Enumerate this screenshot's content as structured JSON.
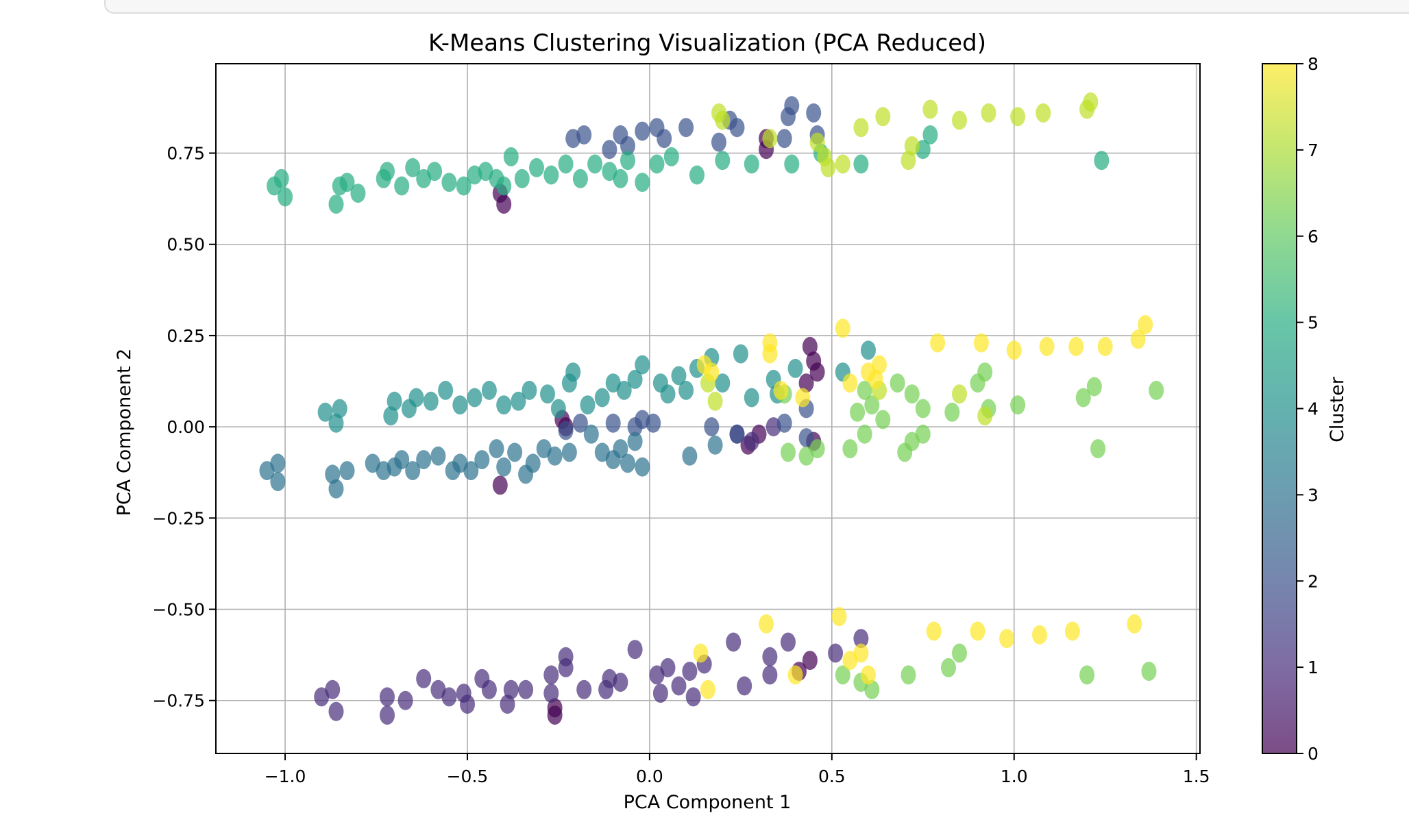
{
  "chart_data": {
    "type": "scatter",
    "title": "K-Means Clustering Visualization (PCA Reduced)",
    "xlabel": "PCA Component 1",
    "ylabel": "PCA Component 2",
    "xlim": [
      -1.19,
      1.51
    ],
    "ylim": [
      -0.895,
      0.995
    ],
    "xticks": [
      -1.0,
      -0.5,
      0.0,
      0.5,
      1.0,
      1.5
    ],
    "xtick_labels": [
      "−1.0",
      "−0.5",
      "0.0",
      "0.5",
      "1.0",
      "1.5"
    ],
    "yticks": [
      -0.75,
      -0.5,
      -0.25,
      0.0,
      0.25,
      0.5,
      0.75
    ],
    "ytick_labels": [
      "−0.75",
      "−0.50",
      "−0.25",
      "0.00",
      "0.25",
      "0.50",
      "0.75"
    ],
    "grid": true,
    "colorbar": {
      "label": "Cluster",
      "range": [
        0,
        8
      ],
      "ticks": [
        0,
        1,
        2,
        3,
        4,
        5,
        6,
        7,
        8
      ],
      "tick_labels": [
        "0",
        "1",
        "2",
        "3",
        "4",
        "5",
        "6",
        "7",
        "8"
      ],
      "colormap": "viridis",
      "alpha": 0.7
    },
    "series": [
      {
        "cluster": 0,
        "color": "#440154",
        "points": [
          [
            -0.4,
            0.61
          ],
          [
            -0.41,
            0.64
          ],
          [
            -0.24,
            0.02
          ],
          [
            -0.23,
            0.0
          ],
          [
            -0.41,
            -0.16
          ],
          [
            0.3,
            -0.02
          ],
          [
            0.27,
            -0.05
          ],
          [
            0.32,
            0.79
          ],
          [
            0.32,
            0.76
          ],
          [
            0.45,
            0.18
          ],
          [
            0.46,
            0.15
          ],
          [
            0.43,
            0.12
          ],
          [
            0.44,
            0.22
          ],
          [
            0.45,
            -0.04
          ],
          [
            -0.26,
            -0.79
          ],
          [
            -0.26,
            -0.77
          ],
          [
            0.41,
            -0.67
          ],
          [
            0.44,
            -0.64
          ]
        ]
      },
      {
        "cluster": 1,
        "color": "#472d7b",
        "points": [
          [
            -0.9,
            -0.74
          ],
          [
            -0.87,
            -0.72
          ],
          [
            -0.86,
            -0.78
          ],
          [
            -0.72,
            -0.74
          ],
          [
            -0.72,
            -0.79
          ],
          [
            -0.67,
            -0.75
          ],
          [
            -0.62,
            -0.69
          ],
          [
            -0.58,
            -0.72
          ],
          [
            -0.55,
            -0.74
          ],
          [
            -0.51,
            -0.73
          ],
          [
            -0.5,
            -0.76
          ],
          [
            -0.46,
            -0.69
          ],
          [
            -0.44,
            -0.72
          ],
          [
            -0.39,
            -0.76
          ],
          [
            -0.38,
            -0.72
          ],
          [
            -0.34,
            -0.72
          ],
          [
            -0.27,
            -0.73
          ],
          [
            -0.27,
            -0.68
          ],
          [
            -0.23,
            -0.66
          ],
          [
            -0.23,
            -0.63
          ],
          [
            -0.18,
            -0.72
          ],
          [
            -0.12,
            -0.72
          ],
          [
            -0.11,
            -0.69
          ],
          [
            -0.08,
            -0.7
          ],
          [
            -0.04,
            -0.61
          ],
          [
            0.02,
            -0.68
          ],
          [
            0.03,
            -0.73
          ],
          [
            0.05,
            -0.66
          ],
          [
            0.08,
            -0.71
          ],
          [
            0.11,
            -0.67
          ],
          [
            0.12,
            -0.74
          ],
          [
            0.15,
            -0.65
          ],
          [
            0.23,
            -0.59
          ],
          [
            0.26,
            -0.71
          ],
          [
            0.33,
            -0.63
          ],
          [
            0.33,
            -0.68
          ],
          [
            0.38,
            -0.59
          ],
          [
            0.51,
            -0.62
          ],
          [
            0.58,
            -0.58
          ],
          [
            0.24,
            -0.02
          ],
          [
            0.34,
            0.0
          ],
          [
            0.28,
            -0.04
          ]
        ]
      },
      {
        "cluster": 2,
        "color": "#3b528b",
        "points": [
          [
            -0.21,
            0.79
          ],
          [
            -0.18,
            0.8
          ],
          [
            -0.11,
            0.76
          ],
          [
            -0.08,
            0.8
          ],
          [
            -0.06,
            0.77
          ],
          [
            -0.02,
            0.81
          ],
          [
            0.02,
            0.82
          ],
          [
            0.04,
            0.79
          ],
          [
            0.1,
            0.82
          ],
          [
            0.19,
            0.78
          ],
          [
            0.22,
            0.84
          ],
          [
            0.24,
            0.82
          ],
          [
            0.37,
            0.79
          ],
          [
            0.39,
            0.88
          ],
          [
            0.38,
            0.85
          ],
          [
            0.45,
            0.86
          ],
          [
            0.46,
            0.8
          ],
          [
            -0.23,
            -0.01
          ],
          [
            -0.19,
            0.01
          ],
          [
            -0.1,
            0.01
          ],
          [
            -0.04,
            0.0
          ],
          [
            -0.02,
            0.02
          ],
          [
            0.01,
            0.01
          ],
          [
            0.17,
            0.0
          ],
          [
            0.24,
            -0.02
          ],
          [
            0.37,
            0.01
          ],
          [
            0.43,
            0.05
          ],
          [
            0.43,
            -0.03
          ]
        ]
      },
      {
        "cluster": 3,
        "color": "#2c728e",
        "points": [
          [
            -1.05,
            -0.12
          ],
          [
            -1.02,
            -0.15
          ],
          [
            -1.02,
            -0.1
          ],
          [
            -0.87,
            -0.13
          ],
          [
            -0.86,
            -0.17
          ],
          [
            -0.83,
            -0.12
          ],
          [
            -0.76,
            -0.1
          ],
          [
            -0.73,
            -0.12
          ],
          [
            -0.7,
            -0.11
          ],
          [
            -0.68,
            -0.09
          ],
          [
            -0.65,
            -0.12
          ],
          [
            -0.62,
            -0.09
          ],
          [
            -0.58,
            -0.08
          ],
          [
            -0.54,
            -0.12
          ],
          [
            -0.52,
            -0.1
          ],
          [
            -0.49,
            -0.12
          ],
          [
            -0.46,
            -0.09
          ],
          [
            -0.42,
            -0.06
          ],
          [
            -0.4,
            -0.11
          ],
          [
            -0.37,
            -0.07
          ],
          [
            -0.34,
            -0.13
          ],
          [
            -0.32,
            -0.1
          ],
          [
            -0.29,
            -0.06
          ],
          [
            -0.26,
            -0.08
          ],
          [
            -0.22,
            -0.07
          ],
          [
            -0.16,
            -0.02
          ],
          [
            -0.13,
            -0.07
          ],
          [
            -0.1,
            -0.09
          ],
          [
            -0.08,
            -0.06
          ],
          [
            -0.06,
            -0.1
          ],
          [
            -0.04,
            -0.04
          ],
          [
            -0.02,
            -0.11
          ],
          [
            0.11,
            -0.08
          ],
          [
            0.18,
            -0.05
          ]
        ]
      },
      {
        "cluster": 4,
        "color": "#21908d",
        "points": [
          [
            -0.89,
            0.04
          ],
          [
            -0.86,
            0.01
          ],
          [
            -0.85,
            0.05
          ],
          [
            -0.71,
            0.03
          ],
          [
            -0.7,
            0.07
          ],
          [
            -0.66,
            0.05
          ],
          [
            -0.64,
            0.08
          ],
          [
            -0.6,
            0.07
          ],
          [
            -0.56,
            0.1
          ],
          [
            -0.52,
            0.06
          ],
          [
            -0.48,
            0.08
          ],
          [
            -0.44,
            0.1
          ],
          [
            -0.4,
            0.06
          ],
          [
            -0.36,
            0.07
          ],
          [
            -0.33,
            0.1
          ],
          [
            -0.28,
            0.09
          ],
          [
            -0.25,
            0.05
          ],
          [
            -0.22,
            0.12
          ],
          [
            -0.21,
            0.15
          ],
          [
            -0.17,
            0.06
          ],
          [
            -0.13,
            0.08
          ],
          [
            -0.1,
            0.12
          ],
          [
            -0.07,
            0.1
          ],
          [
            -0.04,
            0.13
          ],
          [
            -0.02,
            0.17
          ],
          [
            0.03,
            0.12
          ],
          [
            0.05,
            0.09
          ],
          [
            0.08,
            0.14
          ],
          [
            0.1,
            0.1
          ],
          [
            0.13,
            0.16
          ],
          [
            0.17,
            0.19
          ],
          [
            0.2,
            0.12
          ],
          [
            0.25,
            0.2
          ],
          [
            0.28,
            0.08
          ],
          [
            0.34,
            0.13
          ],
          [
            0.4,
            0.16
          ],
          [
            0.53,
            0.15
          ],
          [
            0.6,
            0.21
          ],
          [
            0.35,
            0.09
          ]
        ]
      },
      {
        "cluster": 5,
        "color": "#27ad81",
        "points": [
          [
            -1.03,
            0.66
          ],
          [
            -1.01,
            0.68
          ],
          [
            -1.0,
            0.63
          ],
          [
            -0.85,
            0.66
          ],
          [
            -0.86,
            0.61
          ],
          [
            -0.83,
            0.67
          ],
          [
            -0.8,
            0.64
          ],
          [
            -0.73,
            0.68
          ],
          [
            -0.72,
            0.7
          ],
          [
            -0.68,
            0.66
          ],
          [
            -0.65,
            0.71
          ],
          [
            -0.62,
            0.68
          ],
          [
            -0.59,
            0.7
          ],
          [
            -0.55,
            0.67
          ],
          [
            -0.51,
            0.66
          ],
          [
            -0.48,
            0.69
          ],
          [
            -0.45,
            0.7
          ],
          [
            -0.42,
            0.68
          ],
          [
            -0.4,
            0.66
          ],
          [
            -0.38,
            0.74
          ],
          [
            -0.35,
            0.68
          ],
          [
            -0.31,
            0.71
          ],
          [
            -0.27,
            0.69
          ],
          [
            -0.23,
            0.72
          ],
          [
            -0.19,
            0.68
          ],
          [
            -0.15,
            0.72
          ],
          [
            -0.11,
            0.7
          ],
          [
            -0.08,
            0.68
          ],
          [
            -0.06,
            0.73
          ],
          [
            -0.02,
            0.67
          ],
          [
            0.02,
            0.72
          ],
          [
            0.06,
            0.74
          ],
          [
            0.13,
            0.69
          ],
          [
            0.2,
            0.73
          ],
          [
            0.28,
            0.72
          ],
          [
            0.39,
            0.72
          ],
          [
            0.47,
            0.75
          ],
          [
            0.58,
            0.72
          ],
          [
            0.75,
            0.76
          ],
          [
            0.77,
            0.8
          ],
          [
            1.24,
            0.73
          ]
        ]
      },
      {
        "cluster": 6,
        "color": "#75d054",
        "points": [
          [
            0.57,
            0.04
          ],
          [
            0.59,
            0.1
          ],
          [
            0.61,
            0.06
          ],
          [
            0.64,
            0.02
          ],
          [
            0.68,
            0.12
          ],
          [
            0.72,
            0.09
          ],
          [
            0.75,
            0.05
          ],
          [
            0.75,
            -0.02
          ],
          [
            0.72,
            -0.04
          ],
          [
            0.7,
            -0.07
          ],
          [
            0.83,
            0.04
          ],
          [
            0.9,
            0.12
          ],
          [
            0.92,
            0.15
          ],
          [
            0.93,
            0.05
          ],
          [
            1.01,
            0.06
          ],
          [
            1.19,
            0.08
          ],
          [
            1.22,
            0.11
          ],
          [
            1.23,
            -0.06
          ],
          [
            1.39,
            0.1
          ],
          [
            0.38,
            -0.07
          ],
          [
            0.43,
            -0.08
          ],
          [
            0.46,
            -0.06
          ],
          [
            0.55,
            -0.06
          ],
          [
            0.59,
            -0.02
          ],
          [
            0.37,
            0.09
          ],
          [
            0.53,
            -0.68
          ],
          [
            0.58,
            -0.7
          ],
          [
            0.61,
            -0.72
          ],
          [
            0.71,
            -0.68
          ],
          [
            0.82,
            -0.66
          ],
          [
            0.85,
            -0.62
          ],
          [
            1.2,
            -0.68
          ],
          [
            1.37,
            -0.67
          ]
        ]
      },
      {
        "cluster": 7,
        "color": "#bddf26",
        "points": [
          [
            0.19,
            0.86
          ],
          [
            0.2,
            0.84
          ],
          [
            0.46,
            0.78
          ],
          [
            0.48,
            0.74
          ],
          [
            0.49,
            0.71
          ],
          [
            0.53,
            0.72
          ],
          [
            0.58,
            0.82
          ],
          [
            0.64,
            0.85
          ],
          [
            0.71,
            0.73
          ],
          [
            0.72,
            0.77
          ],
          [
            0.77,
            0.87
          ],
          [
            0.85,
            0.84
          ],
          [
            0.93,
            0.86
          ],
          [
            1.01,
            0.85
          ],
          [
            1.08,
            0.86
          ],
          [
            1.2,
            0.87
          ],
          [
            1.21,
            0.89
          ],
          [
            0.33,
            0.79
          ],
          [
            0.16,
            0.12
          ],
          [
            0.18,
            0.07
          ],
          [
            0.63,
            0.1
          ],
          [
            0.85,
            0.09
          ],
          [
            0.92,
            0.03
          ]
        ]
      },
      {
        "cluster": 8,
        "color": "#fde725",
        "points": [
          [
            0.33,
            0.23
          ],
          [
            0.33,
            0.2
          ],
          [
            0.36,
            0.1
          ],
          [
            0.53,
            0.27
          ],
          [
            0.55,
            0.12
          ],
          [
            0.6,
            0.15
          ],
          [
            0.62,
            0.13
          ],
          [
            0.63,
            0.17
          ],
          [
            0.79,
            0.23
          ],
          [
            0.91,
            0.23
          ],
          [
            1.0,
            0.21
          ],
          [
            1.09,
            0.22
          ],
          [
            1.17,
            0.22
          ],
          [
            1.25,
            0.22
          ],
          [
            1.34,
            0.24
          ],
          [
            1.36,
            0.28
          ],
          [
            0.15,
            0.17
          ],
          [
            0.17,
            0.15
          ],
          [
            0.42,
            0.08
          ],
          [
            0.32,
            -0.54
          ],
          [
            0.4,
            -0.68
          ],
          [
            0.52,
            -0.52
          ],
          [
            0.55,
            -0.64
          ],
          [
            0.58,
            -0.62
          ],
          [
            0.6,
            -0.68
          ],
          [
            0.78,
            -0.56
          ],
          [
            0.9,
            -0.56
          ],
          [
            0.98,
            -0.58
          ],
          [
            1.07,
            -0.57
          ],
          [
            1.16,
            -0.56
          ],
          [
            1.33,
            -0.54
          ],
          [
            0.14,
            -0.62
          ],
          [
            0.16,
            -0.72
          ]
        ]
      }
    ]
  }
}
